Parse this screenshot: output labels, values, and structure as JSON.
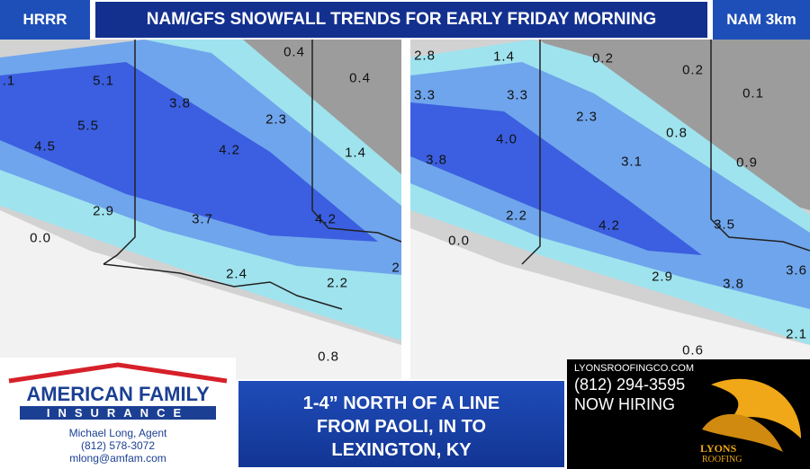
{
  "header": {
    "left_label": "HRRR",
    "title": "NAM/GFS SNOWFALL TRENDS FOR EARLY FRIDAY MORNING",
    "right_label": "NAM 3km"
  },
  "maps": [
    {
      "labels": [
        ".1",
        "5.1",
        "3.8",
        "0.4",
        "0.4",
        "5.5",
        "2.3",
        "4.5",
        "4.2",
        "1.4",
        "2.9",
        "3.7",
        "4.2",
        "0.0",
        "2.4",
        "2.2",
        "0.8",
        "2"
      ]
    },
    {
      "labels": [
        "2.8",
        "1.4",
        "0.2",
        "0.2",
        "3.3",
        "3.3",
        "0.1",
        "2.3",
        "0.8",
        "4.0",
        "3.8",
        "3.1",
        "0.9",
        "2.2",
        "3.5",
        "4.2",
        "0.0",
        "2.9",
        "3.6",
        "3.8",
        "2.1",
        "0.6"
      ]
    }
  ],
  "ads": {
    "left": {
      "brand_line1": "AMERICAN FAMILY",
      "brand_line2": "INSURANCE",
      "agent": "Michael Long, Agent",
      "phone": "(812) 578-3072",
      "email": "mlong@amfam.com"
    },
    "right": {
      "website": "LYONSROOFINGCO.COM",
      "phone": "(812) 294-3595",
      "tagline": "NOW HIRING",
      "logo_top": "LYONS",
      "logo_bottom": "ROOFING"
    }
  },
  "caption": {
    "lines": [
      "1-4” NORTH OF A LINE",
      "FROM PAOLI, IN TO",
      "LEXINGTON, KY"
    ]
  }
}
